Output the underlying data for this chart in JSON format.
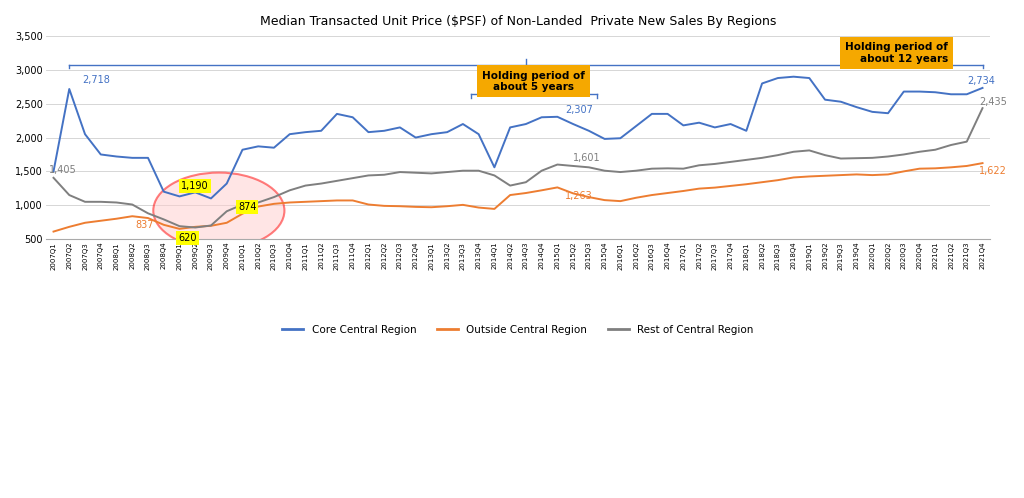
{
  "title": "Median Transacted Unit Price ($PSF) of Non-Landed  Private New Sales By Regions",
  "ylim": [
    500,
    3500
  ],
  "yticks": [
    500,
    1000,
    1500,
    2000,
    2500,
    3000,
    3500
  ],
  "background_color": "#ffffff",
  "quarters": [
    "2007Q1",
    "2007Q2",
    "2007Q3",
    "2007Q4",
    "2008Q1",
    "2008Q2",
    "2008Q3",
    "2008Q4",
    "2009Q1",
    "2009Q2",
    "2009Q3",
    "2009Q4",
    "2010Q1",
    "2010Q2",
    "2010Q3",
    "2010Q4",
    "2011Q1",
    "2011Q2",
    "2011Q3",
    "2011Q4",
    "2012Q1",
    "2012Q2",
    "2012Q3",
    "2012Q4",
    "2013Q1",
    "2013Q2",
    "2013Q3",
    "2013Q4",
    "2014Q1",
    "2014Q2",
    "2014Q3",
    "2014Q4",
    "2015Q1",
    "2015Q2",
    "2015Q3",
    "2015Q4",
    "2016Q1",
    "2016Q2",
    "2016Q3",
    "2016Q4",
    "2017Q1",
    "2017Q2",
    "2017Q3",
    "2017Q4",
    "2018Q1",
    "2018Q2",
    "2018Q3",
    "2018Q4",
    "2019Q1",
    "2019Q2",
    "2019Q3",
    "2019Q4",
    "2020Q1",
    "2020Q2",
    "2020Q3",
    "2020Q4",
    "2021Q1",
    "2021Q2",
    "2021Q3",
    "2021Q4"
  ],
  "ccr": [
    1500,
    2718,
    2050,
    1750,
    1720,
    1700,
    1700,
    1200,
    1130,
    1190,
    1100,
    1320,
    1820,
    1870,
    1850,
    2050,
    2080,
    2100,
    2350,
    2300,
    2080,
    2100,
    2150,
    2000,
    2050,
    2080,
    2200,
    2050,
    1560,
    2150,
    2200,
    2300,
    2307,
    2200,
    2100,
    1980,
    1990,
    2170,
    2350,
    2350,
    2180,
    2220,
    2150,
    2200,
    2100,
    2800,
    2880,
    2900,
    2880,
    2560,
    2530,
    2450,
    2380,
    2360,
    2680,
    2680,
    2670,
    2640,
    2640,
    2734
  ],
  "ocr": [
    610,
    680,
    740,
    770,
    800,
    837,
    810,
    710,
    650,
    680,
    695,
    740,
    874,
    980,
    1020,
    1040,
    1050,
    1060,
    1070,
    1070,
    1010,
    990,
    985,
    975,
    970,
    985,
    1005,
    965,
    945,
    1150,
    1180,
    1220,
    1263,
    1175,
    1120,
    1075,
    1060,
    1110,
    1150,
    1180,
    1210,
    1245,
    1260,
    1285,
    1310,
    1340,
    1370,
    1410,
    1425,
    1435,
    1445,
    1455,
    1445,
    1455,
    1500,
    1540,
    1545,
    1560,
    1580,
    1622
  ],
  "rcr": [
    1405,
    1150,
    1050,
    1050,
    1040,
    1010,
    880,
    790,
    690,
    670,
    700,
    910,
    1010,
    1040,
    1120,
    1220,
    1290,
    1320,
    1360,
    1400,
    1440,
    1450,
    1490,
    1480,
    1470,
    1490,
    1510,
    1510,
    1440,
    1290,
    1340,
    1510,
    1601,
    1580,
    1560,
    1510,
    1490,
    1510,
    1540,
    1545,
    1540,
    1590,
    1610,
    1640,
    1670,
    1700,
    1740,
    1790,
    1810,
    1740,
    1690,
    1695,
    1700,
    1720,
    1750,
    1790,
    1820,
    1890,
    1940,
    2435
  ],
  "ccr_color": "#4472C4",
  "ocr_color": "#ED7D31",
  "rcr_color": "#7F7F7F",
  "legend_items": [
    "Core Central Region",
    "Outside Central Region",
    "Rest of Central Region"
  ]
}
